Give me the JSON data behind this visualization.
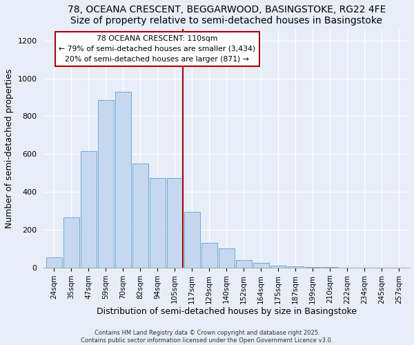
{
  "title1": "78, OCEANA CRESCENT, BEGGARWOOD, BASINGSTOKE, RG22 4FE",
  "title2": "Size of property relative to semi-detached houses in Basingstoke",
  "xlabel": "Distribution of semi-detached houses by size in Basingstoke",
  "ylabel": "Number of semi-detached properties",
  "bar_labels": [
    "24sqm",
    "35sqm",
    "47sqm",
    "59sqm",
    "70sqm",
    "82sqm",
    "94sqm",
    "105sqm",
    "117sqm",
    "129sqm",
    "140sqm",
    "152sqm",
    "164sqm",
    "175sqm",
    "187sqm",
    "199sqm",
    "210sqm",
    "222sqm",
    "234sqm",
    "245sqm",
    "257sqm"
  ],
  "bar_heights": [
    55,
    265,
    615,
    885,
    930,
    550,
    475,
    475,
    295,
    130,
    100,
    40,
    25,
    10,
    5,
    2,
    1,
    0,
    0,
    0,
    0
  ],
  "bar_color": "#c5d8f0",
  "bar_edge_color": "#6aaad4",
  "vline_x_index": 7,
  "vline_color": "#aa0000",
  "annotation_title": "78 OCEANA CRESCENT: 110sqm",
  "annotation_line1": "← 79% of semi-detached houses are smaller (3,434)",
  "annotation_line2": "20% of semi-detached houses are larger (871) →",
  "annotation_box_color": "#ffffff",
  "annotation_box_edge": "#aa0000",
  "ylim": [
    0,
    1260
  ],
  "yticks": [
    0,
    200,
    400,
    600,
    800,
    1000,
    1200
  ],
  "footnote1": "Contains HM Land Registry data © Crown copyright and database right 2025.",
  "footnote2": "Contains public sector information licensed under the Open Government Licence v3.0.",
  "bg_color": "#e8eef8",
  "grid_color": "#ffffff",
  "title_fontsize": 10,
  "axis_label_fontsize": 9,
  "tick_fontsize": 7.5
}
